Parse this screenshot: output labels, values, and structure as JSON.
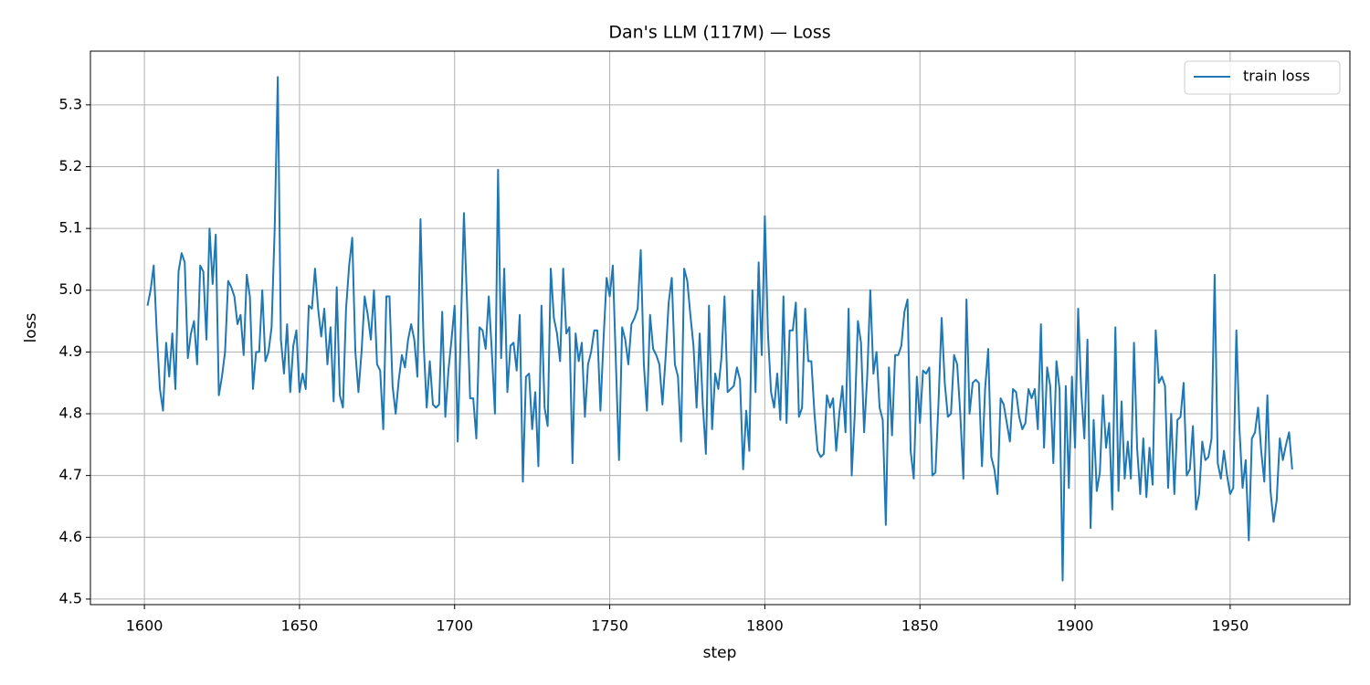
{
  "chart_data": {
    "type": "line",
    "title": "Dan's LLM (117M) — Loss",
    "x_label": "step",
    "y_label": "loss",
    "x": [
      1601,
      1602,
      1603,
      1604,
      1605,
      1606,
      1607,
      1608,
      1609,
      1610,
      1611,
      1612,
      1613,
      1614,
      1615,
      1616,
      1617,
      1618,
      1619,
      1620,
      1621,
      1622,
      1623,
      1624,
      1625,
      1626,
      1627,
      1628,
      1629,
      1630,
      1631,
      1632,
      1633,
      1634,
      1635,
      1636,
      1637,
      1638,
      1639,
      1640,
      1641,
      1642,
      1643,
      1644,
      1645,
      1646,
      1647,
      1648,
      1649,
      1650,
      1651,
      1652,
      1653,
      1654,
      1655,
      1656,
      1657,
      1658,
      1659,
      1660,
      1661,
      1662,
      1663,
      1664,
      1665,
      1666,
      1667,
      1668,
      1669,
      1670,
      1671,
      1672,
      1673,
      1674,
      1675,
      1676,
      1677,
      1678,
      1679,
      1680,
      1681,
      1682,
      1683,
      1684,
      1685,
      1686,
      1687,
      1688,
      1689,
      1690,
      1691,
      1692,
      1693,
      1694,
      1695,
      1696,
      1697,
      1698,
      1699,
      1700,
      1701,
      1702,
      1703,
      1704,
      1705,
      1706,
      1707,
      1708,
      1709,
      1710,
      1711,
      1712,
      1713,
      1714,
      1715,
      1716,
      1717,
      1718,
      1719,
      1720,
      1721,
      1722,
      1723,
      1724,
      1725,
      1726,
      1727,
      1728,
      1729,
      1730,
      1731,
      1732,
      1733,
      1734,
      1735,
      1736,
      1737,
      1738,
      1739,
      1740,
      1741,
      1742,
      1743,
      1744,
      1745,
      1746,
      1747,
      1748,
      1749,
      1750,
      1751,
      1752,
      1753,
      1754,
      1755,
      1756,
      1757,
      1758,
      1759,
      1760,
      1761,
      1762,
      1763,
      1764,
      1765,
      1766,
      1767,
      1768,
      1769,
      1770,
      1771,
      1772,
      1773,
      1774,
      1775,
      1776,
      1777,
      1778,
      1779,
      1780,
      1781,
      1782,
      1783,
      1784,
      1785,
      1786,
      1787,
      1788,
      1789,
      1790,
      1791,
      1792,
      1793,
      1794,
      1795,
      1796,
      1797,
      1798,
      1799,
      1800,
      1801,
      1802,
      1803,
      1804,
      1805,
      1806,
      1807,
      1808,
      1809,
      1810,
      1811,
      1812,
      1813,
      1814,
      1815,
      1816,
      1817,
      1818,
      1819,
      1820,
      1821,
      1822,
      1823,
      1824,
      1825,
      1826,
      1827,
      1828,
      1829,
      1830,
      1831,
      1832,
      1833,
      1834,
      1835,
      1836,
      1837,
      1838,
      1839,
      1840,
      1841,
      1842,
      1843,
      1844,
      1845,
      1846,
      1847,
      1848,
      1849,
      1850,
      1851,
      1852,
      1853,
      1854,
      1855,
      1856,
      1857,
      1858,
      1859,
      1860,
      1861,
      1862,
      1863,
      1864,
      1865,
      1866,
      1867,
      1868,
      1869,
      1870,
      1871,
      1872,
      1873,
      1874,
      1875,
      1876,
      1877,
      1878,
      1879,
      1880,
      1881,
      1882,
      1883,
      1884,
      1885,
      1886,
      1887,
      1888,
      1889,
      1890,
      1891,
      1892,
      1893,
      1894,
      1895,
      1896,
      1897,
      1898,
      1899,
      1900,
      1901,
      1902,
      1903,
      1904,
      1905,
      1906,
      1907,
      1908,
      1909,
      1910,
      1911,
      1912,
      1913,
      1914,
      1915,
      1916,
      1917,
      1918,
      1919,
      1920,
      1921,
      1922,
      1923,
      1924,
      1925,
      1926,
      1927,
      1928,
      1929,
      1930,
      1931,
      1932,
      1933,
      1934,
      1935,
      1936,
      1937,
      1938,
      1939,
      1940,
      1941,
      1942,
      1943,
      1944,
      1945,
      1946,
      1947,
      1948,
      1949,
      1950,
      1951,
      1952,
      1953,
      1954,
      1955,
      1956,
      1957,
      1958,
      1959,
      1960,
      1961,
      1962,
      1963,
      1964,
      1965,
      1966,
      1967,
      1968,
      1969,
      1970
    ],
    "series": [
      {
        "name": "train loss",
        "color": "#1f77b4",
        "values": [
          4.975,
          5.0,
          5.04,
          4.93,
          4.84,
          4.805,
          4.915,
          4.86,
          4.93,
          4.84,
          5.03,
          5.06,
          5.045,
          4.89,
          4.93,
          4.95,
          4.88,
          5.04,
          5.03,
          4.92,
          5.1,
          5.01,
          5.09,
          4.83,
          4.86,
          4.9,
          5.015,
          5.005,
          4.99,
          4.945,
          4.96,
          4.895,
          5.025,
          4.99,
          4.84,
          4.9,
          4.9,
          5.0,
          4.885,
          4.9,
          4.94,
          5.1,
          5.345,
          4.92,
          4.865,
          4.945,
          4.835,
          4.91,
          4.935,
          4.835,
          4.865,
          4.84,
          4.975,
          4.97,
          5.035,
          4.97,
          4.925,
          4.97,
          4.88,
          4.94,
          4.82,
          5.005,
          4.83,
          4.81,
          4.97,
          5.04,
          5.085,
          4.9,
          4.835,
          4.9,
          4.99,
          4.96,
          4.92,
          5.0,
          4.88,
          4.87,
          4.775,
          4.99,
          4.99,
          4.845,
          4.8,
          4.855,
          4.895,
          4.875,
          4.92,
          4.945,
          4.92,
          4.86,
          5.115,
          4.915,
          4.81,
          4.885,
          4.815,
          4.81,
          4.815,
          4.965,
          4.795,
          4.87,
          4.92,
          4.975,
          4.755,
          4.935,
          5.125,
          4.98,
          4.825,
          4.825,
          4.76,
          4.94,
          4.935,
          4.905,
          4.99,
          4.9,
          4.8,
          5.195,
          4.89,
          5.035,
          4.835,
          4.91,
          4.915,
          4.87,
          4.96,
          4.69,
          4.86,
          4.865,
          4.775,
          4.835,
          4.715,
          4.975,
          4.81,
          4.78,
          5.035,
          4.955,
          4.93,
          4.885,
          5.035,
          4.93,
          4.94,
          4.72,
          4.93,
          4.885,
          4.915,
          4.795,
          4.88,
          4.9,
          4.935,
          4.935,
          4.805,
          4.92,
          5.02,
          4.99,
          5.04,
          4.88,
          4.725,
          4.94,
          4.92,
          4.88,
          4.945,
          4.955,
          4.97,
          5.065,
          4.88,
          4.805,
          4.96,
          4.905,
          4.895,
          4.88,
          4.815,
          4.89,
          4.98,
          5.02,
          4.88,
          4.86,
          4.755,
          5.035,
          5.015,
          4.96,
          4.91,
          4.81,
          4.93,
          4.815,
          4.735,
          4.975,
          4.775,
          4.865,
          4.84,
          4.89,
          4.99,
          4.835,
          4.84,
          4.845,
          4.875,
          4.855,
          4.71,
          4.805,
          4.74,
          5.0,
          4.835,
          5.045,
          4.895,
          5.12,
          4.93,
          4.835,
          4.81,
          4.865,
          4.79,
          4.99,
          4.785,
          4.935,
          4.935,
          4.98,
          4.795,
          4.81,
          4.97,
          4.885,
          4.885,
          4.8,
          4.74,
          4.73,
          4.735,
          4.83,
          4.81,
          4.825,
          4.74,
          4.8,
          4.845,
          4.77,
          4.97,
          4.7,
          4.8,
          4.95,
          4.915,
          4.77,
          4.86,
          5.0,
          4.865,
          4.9,
          4.81,
          4.79,
          4.62,
          4.875,
          4.765,
          4.895,
          4.895,
          4.91,
          4.965,
          4.985,
          4.74,
          4.695,
          4.86,
          4.785,
          4.87,
          4.865,
          4.875,
          4.7,
          4.705,
          4.82,
          4.955,
          4.85,
          4.795,
          4.8,
          4.895,
          4.88,
          4.8,
          4.695,
          4.985,
          4.8,
          4.85,
          4.855,
          4.85,
          4.715,
          4.84,
          4.905,
          4.73,
          4.71,
          4.67,
          4.825,
          4.815,
          4.785,
          4.755,
          4.84,
          4.835,
          4.795,
          4.775,
          4.785,
          4.84,
          4.825,
          4.84,
          4.775,
          4.945,
          4.745,
          4.875,
          4.845,
          4.72,
          4.885,
          4.84,
          4.53,
          4.845,
          4.68,
          4.86,
          4.745,
          4.97,
          4.835,
          4.76,
          4.92,
          4.615,
          4.79,
          4.675,
          4.705,
          4.83,
          4.745,
          4.785,
          4.645,
          4.94,
          4.675,
          4.82,
          4.695,
          4.755,
          4.695,
          4.915,
          4.745,
          4.67,
          4.76,
          4.665,
          4.745,
          4.685,
          4.935,
          4.85,
          4.86,
          4.845,
          4.68,
          4.8,
          4.67,
          4.79,
          4.795,
          4.85,
          4.7,
          4.71,
          4.78,
          4.645,
          4.67,
          4.755,
          4.725,
          4.73,
          4.76,
          5.025,
          4.72,
          4.695,
          4.74,
          4.7,
          4.67,
          4.68,
          4.935,
          4.775,
          4.68,
          4.725,
          4.595,
          4.76,
          4.77,
          4.81,
          4.74,
          4.69,
          4.83,
          4.675,
          4.625,
          4.66,
          4.76,
          4.725,
          4.75,
          4.77,
          4.71
        ]
      }
    ],
    "xlim": [
      1582.6,
      1988.6
    ],
    "ylim": [
      4.491,
      5.387
    ],
    "xticks": [
      1600,
      1650,
      1700,
      1750,
      1800,
      1850,
      1900,
      1950
    ],
    "yticks": [
      4.5,
      4.6,
      4.7,
      4.8,
      4.9,
      {
        "value": 5.0,
        "label": "5.0"
      },
      5.1,
      5.2,
      5.3
    ],
    "grid": true,
    "legend": "upper right"
  }
}
